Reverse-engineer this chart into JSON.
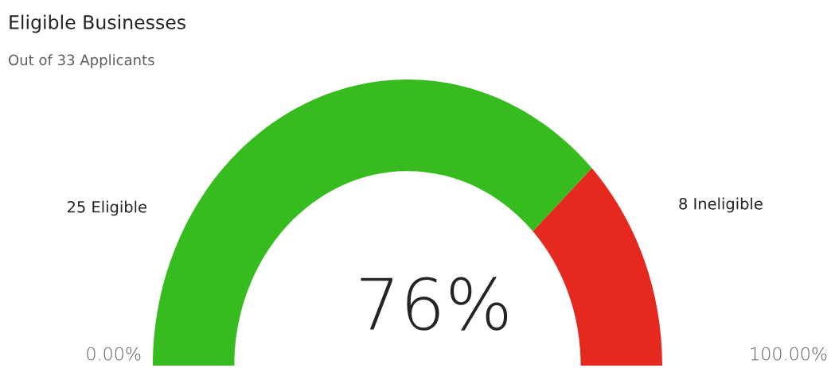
{
  "chart_data": {
    "type": "donut",
    "title": "Eligible Businesses",
    "subtitle": "Out of 33 Applicants",
    "categories": [
      "25 Eligible",
      "8 Ineligible"
    ],
    "values": [
      25,
      8
    ],
    "colors": [
      "#37bc1f",
      "#e6291e"
    ],
    "annotations": [
      "76%",
      "0.00%",
      "100.00%"
    ]
  }
}
